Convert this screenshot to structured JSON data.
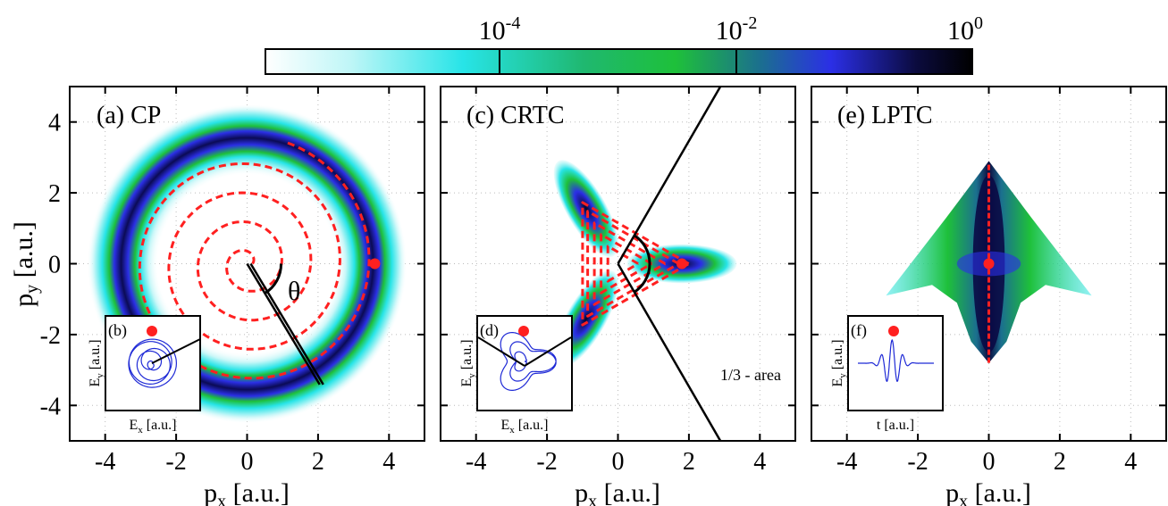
{
  "chart_data": {
    "type": "heatmap",
    "colorbar": {
      "scale": "log",
      "range": [
        1e-06,
        1
      ],
      "tick_labels": [
        {
          "base": "10",
          "exp": "-4",
          "value": 0.0001
        },
        {
          "base": "10",
          "exp": "-2",
          "value": 0.01
        },
        {
          "base": "10",
          "exp": "0",
          "value": 1
        }
      ],
      "colors": [
        "#ffffff",
        "#27e4e7",
        "#1ec03a",
        "#2b2fe6",
        "#0b0b3f",
        "#000000"
      ]
    },
    "panels": [
      {
        "label": "(a) CP",
        "xlabel": "p",
        "xlabel_sub": "x",
        "xlabel_unit": " [a.u.]",
        "ylabel": "p",
        "ylabel_sub": "y",
        "ylabel_unit": " [a.u.]",
        "xlim": [
          -5,
          5
        ],
        "ylim": [
          -5,
          5
        ],
        "xticks": [
          -4,
          -2,
          0,
          2,
          4
        ],
        "yticks": [
          -4,
          -2,
          0,
          2,
          4
        ],
        "grid": true,
        "distribution": "ring",
        "ring_radius": 3.6,
        "ring_width": 0.75,
        "red_dashed_spiral": true,
        "red_dot": [
          3.6,
          0
        ],
        "angle_label": "θ",
        "inset": {
          "label": "(b)",
          "xlabel": "E",
          "xlabel_sub": "x",
          "xlabel_unit": " [a.u.]",
          "ylabel": "E",
          "ylabel_sub": "y",
          "ylabel_unit": " [a.u.]"
        }
      },
      {
        "label": "(c) CRTC",
        "xlabel": "p",
        "xlabel_sub": "x",
        "xlabel_unit": " [a.u.]",
        "xlim": [
          -5,
          5
        ],
        "ylim": [
          -5,
          5
        ],
        "xticks": [
          -4,
          -2,
          0,
          2,
          4
        ],
        "grid": true,
        "distribution": "triangle",
        "lobes": 3,
        "lobe_radius": 1.8,
        "red_dot": [
          1.8,
          0
        ],
        "area_label": "1/3 - area",
        "inset": {
          "label": "(d)",
          "xlabel": "E",
          "xlabel_sub": "x",
          "xlabel_unit": " [a.u.]",
          "ylabel": "E",
          "ylabel_sub": "y",
          "ylabel_unit": " [a.u.]"
        }
      },
      {
        "label": "(e) LPTC",
        "xlabel": "p",
        "xlabel_sub": "x",
        "xlabel_unit": " [a.u.]",
        "xlim": [
          -5,
          5
        ],
        "ylim": [
          -5,
          5
        ],
        "xticks": [
          -4,
          -2,
          0,
          2,
          4
        ],
        "grid": true,
        "distribution": "arrow",
        "red_dot": [
          0,
          0
        ],
        "red_line_y": [
          -2.8,
          2.8
        ],
        "inset": {
          "label": "(f)",
          "xlabel": "t",
          "xlabel_unit": " [a.u.]",
          "ylabel": "E",
          "ylabel_sub": "y",
          "ylabel_unit": " [a.u.]"
        }
      }
    ]
  }
}
